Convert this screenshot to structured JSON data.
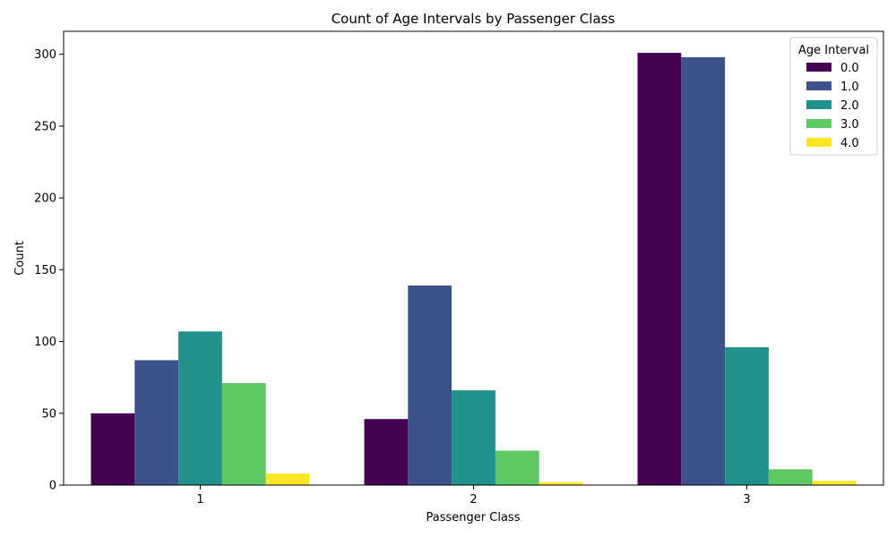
{
  "chart_data": {
    "type": "bar",
    "title": "Count of Age Intervals by Passenger Class",
    "xlabel": "Passenger Class",
    "ylabel": "Count",
    "categories": [
      "1",
      "2",
      "3"
    ],
    "ylim": [
      0,
      316
    ],
    "yticks": [
      0,
      50,
      100,
      150,
      200,
      250,
      300
    ],
    "grid": false,
    "legend": {
      "title": "Age Interval",
      "placement": "top-right"
    },
    "series": [
      {
        "name": "0.0",
        "color": "#440154",
        "values": [
          50,
          46,
          301
        ]
      },
      {
        "name": "1.0",
        "color": "#3b528b",
        "values": [
          87,
          139,
          298
        ]
      },
      {
        "name": "2.0",
        "color": "#21918c",
        "values": [
          107,
          66,
          96
        ]
      },
      {
        "name": "3.0",
        "color": "#5ec962",
        "values": [
          71,
          24,
          11
        ]
      },
      {
        "name": "4.0",
        "color": "#fde725",
        "values": [
          8,
          2,
          3
        ]
      }
    ]
  }
}
